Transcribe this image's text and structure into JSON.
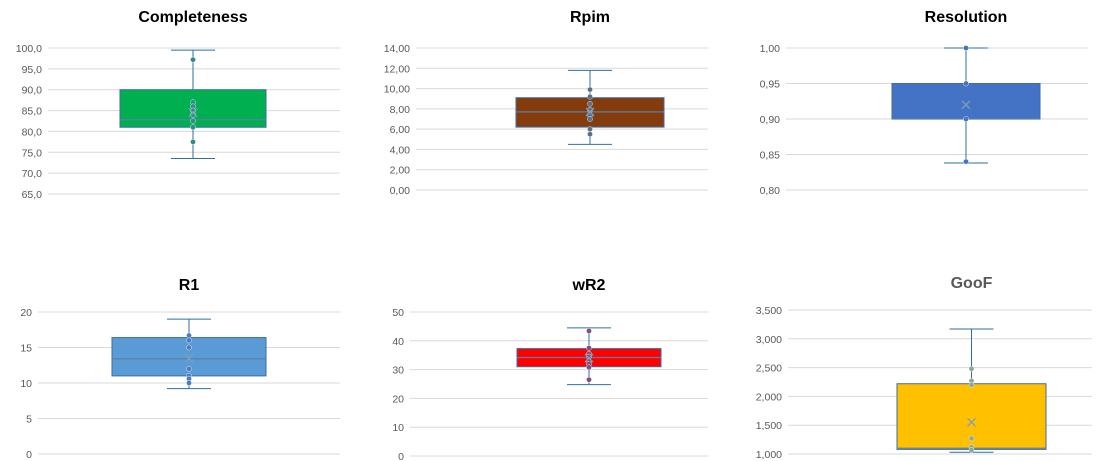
{
  "chart_data": [
    {
      "type": "box",
      "title": "Completeness",
      "title_color": "#000000",
      "ylim": [
        65,
        100
      ],
      "yticks": [
        "100,0",
        "95,0",
        "90,0",
        "85,0",
        "80,0",
        "75,0",
        "70,0",
        "65,0"
      ],
      "ytick_values": [
        100,
        95,
        90,
        85,
        80,
        75,
        70,
        65
      ],
      "box": {
        "min": 73.5,
        "q1": 81.0,
        "median": 82.8,
        "q3": 90.0,
        "max": 99.5,
        "mean": 84.5
      },
      "points": [
        97.2,
        87.0,
        86.0,
        85.0,
        84.0,
        82.5,
        81.0,
        77.5
      ],
      "fill": "#00b050",
      "point_color": "#2e8b8b"
    },
    {
      "type": "box",
      "title": "Rpim",
      "title_color": "#000000",
      "ylim": [
        0,
        14
      ],
      "yticks": [
        "14,00",
        "12,00",
        "10,00",
        "8,00",
        "6,00",
        "4,00",
        "2,00",
        "0,00"
      ],
      "ytick_values": [
        14,
        12,
        10,
        8,
        6,
        4,
        2,
        0
      ],
      "box": {
        "min": 4.5,
        "q1": 6.2,
        "median": 7.7,
        "q3": 9.1,
        "max": 11.8,
        "mean": 7.7
      },
      "points": [
        9.9,
        9.2,
        8.5,
        7.9,
        7.4,
        7.0,
        6.0,
        5.5
      ],
      "fill": "#843c0c",
      "point_color": "#5a6f8a"
    },
    {
      "type": "box",
      "title": "Resolution",
      "title_color": "#000000",
      "ylim": [
        0.8,
        1.0
      ],
      "yticks": [
        "1,00",
        "0,95",
        "0,90",
        "0,85",
        "0,80"
      ],
      "ytick_values": [
        1.0,
        0.95,
        0.9,
        0.85,
        0.8
      ],
      "box": {
        "min": 0.838,
        "q1": 0.9,
        "median": 0.9,
        "q3": 0.95,
        "max": 1.0,
        "mean": 0.92
      },
      "points": [
        1.0,
        0.95,
        0.9,
        0.84
      ],
      "fill": "#4472c4",
      "point_color": "#4472c4"
    },
    {
      "type": "box",
      "title": "R1",
      "title_color": "#000000",
      "ylim": [
        0,
        20
      ],
      "yticks": [
        "20",
        "15",
        "10",
        "5",
        "0"
      ],
      "ytick_values": [
        20,
        15,
        10,
        5,
        0
      ],
      "box": {
        "min": 9.2,
        "q1": 11.0,
        "median": 13.4,
        "q3": 16.4,
        "max": 19.0,
        "mean": 13.5
      },
      "points": [
        16.7,
        16.0,
        15.0,
        12.0,
        11.0,
        10.6,
        10.0
      ],
      "fill": "#5b9bd5",
      "point_color": "#4a7fbf"
    },
    {
      "type": "box",
      "title": "wR2",
      "title_color": "#000000",
      "ylim": [
        0,
        50
      ],
      "yticks": [
        "50",
        "40",
        "30",
        "20",
        "10",
        "0"
      ],
      "ytick_values": [
        50,
        40,
        30,
        20,
        10,
        0
      ],
      "box": {
        "min": 24.8,
        "q1": 31.0,
        "median": 34.2,
        "q3": 37.3,
        "max": 44.5,
        "mean": 34.0
      },
      "points": [
        43.4,
        37.5,
        35.5,
        34.5,
        33.0,
        32.0,
        30.8,
        26.5
      ],
      "fill": "#ff0000",
      "point_color": "#7f4f7f"
    },
    {
      "type": "box",
      "title": "GooF",
      "title_color": "#595959",
      "ylim": [
        1.0,
        3.5
      ],
      "yticks": [
        "3,500",
        "3,000",
        "2,500",
        "2,000",
        "1,500",
        "1,000"
      ],
      "ytick_values": [
        3.5,
        3.0,
        2.5,
        2.0,
        1.5,
        1.0
      ],
      "box": {
        "min": 1.03,
        "q1": 1.08,
        "median": 1.1,
        "q3": 2.22,
        "max": 3.17,
        "mean": 1.55
      },
      "points": [
        2.48,
        2.27,
        2.2,
        1.27,
        1.12,
        1.07
      ],
      "fill": "#ffc000",
      "point_color": "#8fa88f"
    }
  ]
}
